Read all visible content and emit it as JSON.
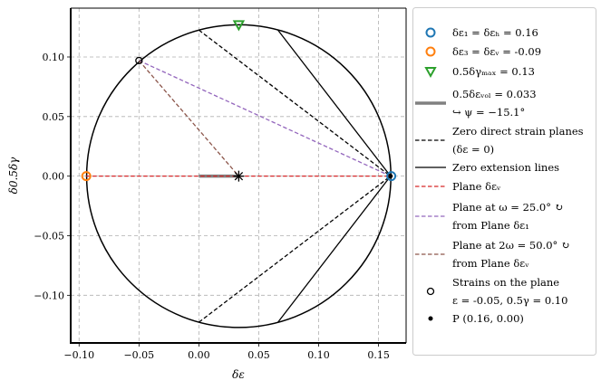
{
  "chart_data": {
    "type": "scatter",
    "xlabel": "δε",
    "ylabel": "δ0.5δγ",
    "xlim": [
      -0.107,
      0.173
    ],
    "ylim": [
      -0.14,
      0.141
    ],
    "grid": true,
    "legend_position": "outside-right",
    "x_ticks": [
      "−0.10",
      "−0.05",
      "0.00",
      "0.05",
      "0.10",
      "0.15"
    ],
    "x_tick_values": [
      -0.1,
      -0.05,
      0.0,
      0.05,
      0.1,
      0.15
    ],
    "y_ticks": [
      "0.10",
      "0.05",
      "0.00",
      "−0.05",
      "−0.10"
    ],
    "y_tick_values": [
      0.1,
      0.05,
      0.0,
      -0.05,
      -0.1
    ],
    "circle": {
      "center": [
        0.0333,
        0
      ],
      "radius": 0.127,
      "color": "#000000"
    },
    "points": [
      {
        "name": "delta-eps-1",
        "x": 0.1606,
        "y": 0,
        "marker": "open-circle",
        "color": "#1f77b4"
      },
      {
        "name": "delta-eps-3",
        "x": -0.094,
        "y": 0,
        "marker": "open-circle",
        "color": "#ff7f0e"
      },
      {
        "name": "gamma-max",
        "x": 0.0333,
        "y": 0.127,
        "marker": "open-triangle-down",
        "color": "#2ca02c"
      },
      {
        "name": "center",
        "x": 0.0333,
        "y": 0,
        "marker": "star",
        "color": "#000000"
      },
      {
        "name": "plane-strain",
        "x": -0.05,
        "y": 0.097,
        "marker": "open-circle-small",
        "color": "#000000"
      },
      {
        "name": "pole-p",
        "x": 0.16,
        "y": 0,
        "marker": "dot",
        "color": "#000000"
      }
    ],
    "lines": [
      {
        "name": "vol-strain",
        "x": [
          0,
          0.0333
        ],
        "y": [
          0,
          0
        ],
        "style": "thick",
        "color": "#808080"
      },
      {
        "name": "zero-direct-upper",
        "x": [
          0,
          0.16
        ],
        "y": [
          0.1226,
          0
        ],
        "style": "dashed",
        "color": "#000000"
      },
      {
        "name": "zero-direct-lower",
        "x": [
          0,
          0.16
        ],
        "y": [
          -0.1226,
          0
        ],
        "style": "dashed",
        "color": "#000000"
      },
      {
        "name": "zero-ext-upper",
        "x": [
          0.066,
          0.16
        ],
        "y": [
          0.1226,
          0
        ],
        "style": "solid",
        "color": "#000000"
      },
      {
        "name": "zero-ext-lower",
        "x": [
          0.066,
          0.16
        ],
        "y": [
          -0.1226,
          0
        ],
        "style": "solid",
        "color": "#000000"
      },
      {
        "name": "plane-eps-v",
        "x": [
          -0.094,
          0.16
        ],
        "y": [
          0,
          0
        ],
        "style": "dashed",
        "color": "#d62728"
      },
      {
        "name": "plane-omega",
        "x": [
          -0.05,
          0.16
        ],
        "y": [
          0.097,
          0
        ],
        "style": "dashed",
        "color": "#9467bd"
      },
      {
        "name": "plane-2omega",
        "x": [
          -0.05,
          0.0333
        ],
        "y": [
          0.097,
          0
        ],
        "style": "dashed",
        "color": "#8c564b"
      }
    ],
    "legend": [
      {
        "lines": [
          "δε₁ = δεₕ = 0.16"
        ],
        "marker": "open-circle",
        "color": "#1f77b4"
      },
      {
        "lines": [
          "δε₃ = δεᵥ = -0.09"
        ],
        "marker": "open-circle",
        "color": "#ff7f0e"
      },
      {
        "lines": [
          "0.5δγₘₐₓ = 0.13"
        ],
        "marker": "open-triangle-down",
        "color": "#2ca02c"
      },
      {
        "lines": [
          "0.5δεᵥₒₗ = 0.033",
          "↪ ψ = −15.1°"
        ],
        "marker": "thick-line",
        "color": "#808080"
      },
      {
        "lines": [
          "Zero direct strain planes",
          "(δε = 0)"
        ],
        "marker": "dashed",
        "color": "#000000"
      },
      {
        "lines": [
          "Zero extension lines"
        ],
        "marker": "solid",
        "color": "#000000"
      },
      {
        "lines": [
          "Plane δεᵥ"
        ],
        "marker": "dashed",
        "color": "#d62728"
      },
      {
        "lines": [
          "Plane at ω = 25.0° ↻",
          "from Plane δε₁"
        ],
        "marker": "dashed",
        "color": "#9467bd"
      },
      {
        "lines": [
          "Plane at 2ω = 50.0° ↻",
          "from Plane δεᵥ"
        ],
        "marker": "dashed",
        "color": "#8c564b"
      },
      {
        "lines": [
          "Strains on the plane",
          "ε = -0.05, 0.5γ = 0.10"
        ],
        "marker": "open-circle-small",
        "color": "#000000"
      },
      {
        "lines": [
          "P (0.16, 0.00)"
        ],
        "marker": "dot",
        "color": "#000000"
      }
    ]
  }
}
